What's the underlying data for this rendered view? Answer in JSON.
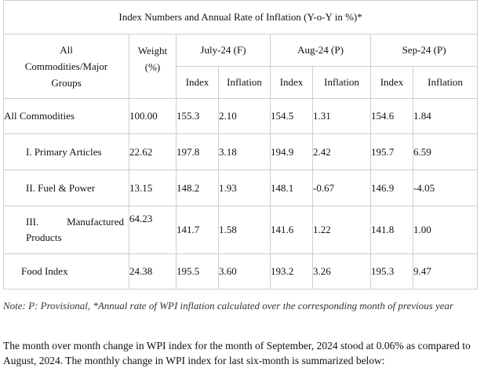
{
  "table": {
    "title": "Index Numbers and Annual Rate of Inflation (Y-o-Y in %)*",
    "headers": {
      "group_line1": "All",
      "group_line2": "Commodities/Major",
      "group_line3": "Groups",
      "weight_line1": "Weight",
      "weight_line2": "(%)",
      "periods": [
        "July-24 (F)",
        "Aug-24 (P)",
        "Sep-24 (P)"
      ],
      "index": "Index",
      "inflation": "Inflation"
    },
    "rows": [
      {
        "label": "All Commodities",
        "weight": "100.00",
        "jul_index": "155.3",
        "jul_infl": "2.10",
        "aug_index": "154.5",
        "aug_infl": "1.31",
        "sep_index": "154.6",
        "sep_infl": "1.84"
      },
      {
        "label": "I. Primary Articles",
        "weight": "22.62",
        "jul_index": "197.8",
        "jul_infl": "3.18",
        "aug_index": "194.9",
        "aug_infl": "2.42",
        "sep_index": "195.7",
        "sep_infl": "6.59"
      },
      {
        "label": "II. Fuel & Power",
        "weight": "13.15",
        "jul_index": "148.2",
        "jul_infl": "1.93",
        "aug_index": "148.1",
        "aug_infl": "-0.67",
        "sep_index": "146.9",
        "sep_infl": "-4.05"
      },
      {
        "label_part1": "III.",
        "label_part2": "Manufactured",
        "label_part3": "Products",
        "weight": "64.23",
        "jul_index": "141.7",
        "jul_infl": "1.58",
        "aug_index": "141.6",
        "aug_infl": "1.22",
        "sep_index": "141.8",
        "sep_infl": "1.00"
      },
      {
        "label": "Food Index",
        "weight": "24.38",
        "jul_index": "195.5",
        "jul_infl": "3.60",
        "aug_index": "193.2",
        "aug_infl": "3.26",
        "sep_index": "195.3",
        "sep_infl": "9.47"
      }
    ]
  },
  "note": "Note: P: Provisional, *Annual rate of WPI inflation calculated over the corresponding month of previous year",
  "paragraph": "The month over month change in WPI index for the month of September, 2024 stood at 0.06% as compared to August, 2024. The monthly change in WPI index for last six-month is summarized below:"
}
